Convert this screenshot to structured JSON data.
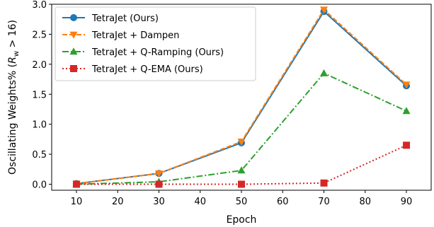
{
  "chart_data": {
    "type": "line",
    "xlabel": "Epoch",
    "ylabel_parts": {
      "prefix": "Oscillating Weights% (",
      "var": "R",
      "sub": "w",
      "suffix": " > 16)"
    },
    "x": [
      10,
      30,
      50,
      70,
      90
    ],
    "xlim": [
      4,
      96
    ],
    "ylim": [
      -0.1,
      3.0
    ],
    "xticks": [
      10,
      20,
      30,
      40,
      50,
      60,
      70,
      80,
      90
    ],
    "yticks": [
      "0.0",
      "0.5",
      "1.0",
      "1.5",
      "2.0",
      "2.5",
      "3.0"
    ],
    "grid": false,
    "legend_position": "top-left",
    "series": [
      {
        "name": "TetraJet (Ours)",
        "values": [
          0.01,
          0.18,
          0.69,
          2.88,
          1.64
        ],
        "color": "#1f77b4",
        "dash": "solid",
        "marker": "circle"
      },
      {
        "name": "TetraJet + Dampen",
        "values": [
          0.01,
          0.18,
          0.71,
          2.91,
          1.66
        ],
        "color": "#ff7f0e",
        "dash": "dashed",
        "marker": "triangle-down"
      },
      {
        "name": "TetraJet + Q-Ramping (Ours)",
        "values": [
          0.0,
          0.04,
          0.23,
          1.85,
          1.22
        ],
        "color": "#2ca02c",
        "dash": "dashdot",
        "marker": "triangle-up"
      },
      {
        "name": "TetraJet + Q-EMA (Ours)",
        "values": [
          0.0,
          0.0,
          0.0,
          0.02,
          0.65
        ],
        "color": "#d62728",
        "dash": "dotted",
        "marker": "square"
      }
    ]
  }
}
